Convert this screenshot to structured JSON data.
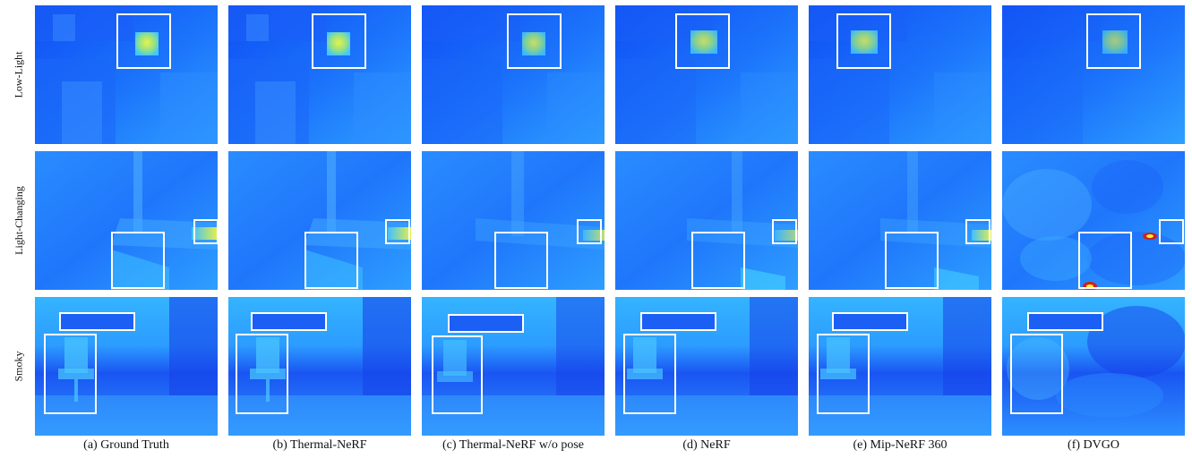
{
  "figure": {
    "rows": [
      {
        "key": "low",
        "label": "Low-Light"
      },
      {
        "key": "change",
        "label": "Light-Changing"
      },
      {
        "key": "smoky",
        "label": "Smoky"
      }
    ],
    "columns": [
      {
        "key": "gt",
        "caption": "(a) Ground Truth"
      },
      {
        "key": "tnerf",
        "caption": "(b) Thermal-NeRF"
      },
      {
        "key": "tnerf_nopose",
        "caption": "(c) Thermal-NeRF w/o pose"
      },
      {
        "key": "nerf",
        "caption": "(d) NeRF"
      },
      {
        "key": "mip",
        "caption": "(e) Mip-NeRF 360"
      },
      {
        "key": "dvgo",
        "caption": "(f) DVGO"
      }
    ]
  },
  "colors": {
    "deep_blue": "#0a3cf0",
    "mid_blue": "#1f78ff",
    "light_blue": "#3aa8ff",
    "cyan": "#4fd0ff",
    "yellow": "#f4ef3a",
    "hot_red": "#d0201a",
    "box": "#ffffff"
  }
}
